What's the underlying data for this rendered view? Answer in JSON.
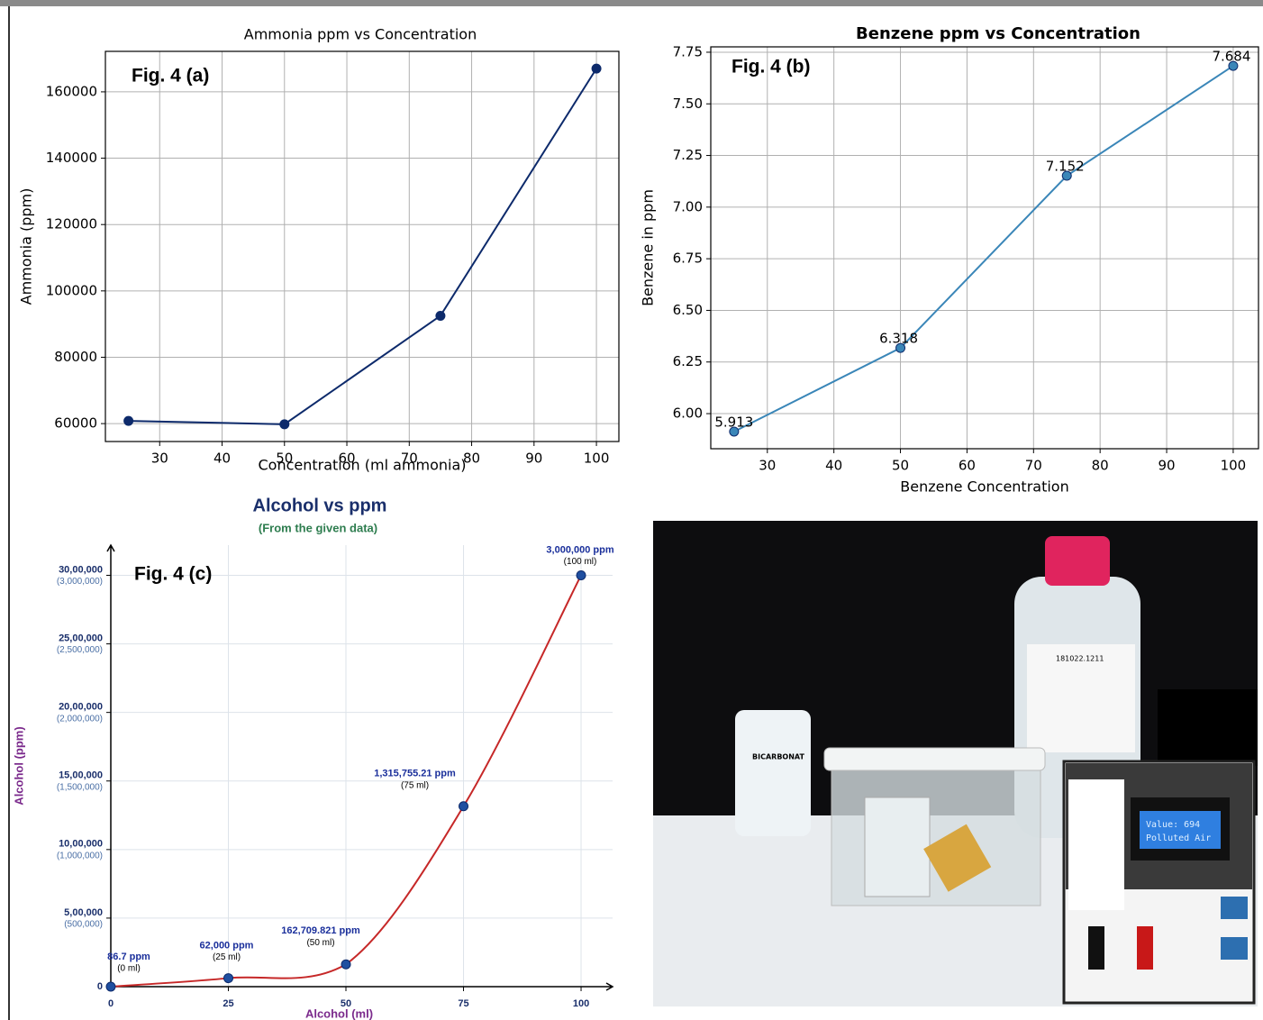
{
  "chart_data": [
    {
      "type": "line",
      "title": "Ammonia ppm vs Concentration",
      "annotation": "Fig. 4 (a)",
      "xlabel": "Concentration (ml ammonia)",
      "ylabel": "Ammonia (ppm)",
      "x": [
        25,
        50,
        75,
        100
      ],
      "values": [
        60800,
        59800,
        92500,
        167000
      ],
      "color": "#0d2a6b",
      "xlim": [
        21.3,
        103.6
      ],
      "ylim": [
        54600,
        172200
      ],
      "xticks": [
        30,
        40,
        50,
        60,
        70,
        80,
        90,
        100
      ],
      "yticks": [
        60000,
        80000,
        100000,
        120000,
        140000,
        160000
      ],
      "grid": true
    },
    {
      "type": "line",
      "title": "Benzene ppm vs Concentration",
      "annotation": "Fig. 4 (b)",
      "xlabel": "Benzene Concentration",
      "ylabel": "Benzene in ppm",
      "x": [
        25,
        50,
        75,
        100
      ],
      "values": [
        5.913,
        6.318,
        7.152,
        7.684
      ],
      "color": "#3a86b8",
      "xlim": [
        21.5,
        103.8
      ],
      "ylim": [
        5.83,
        7.776
      ],
      "xticks": [
        30,
        40,
        50,
        60,
        70,
        80,
        90,
        100
      ],
      "yticks": [
        {
          "value": 6,
          "label": "6.00"
        },
        {
          "value": 6.25,
          "label": "6.25"
        },
        {
          "value": 6.5,
          "label": "6.50"
        },
        {
          "value": 6.75,
          "label": "6.75"
        },
        {
          "value": 7,
          "label": "7.00"
        },
        {
          "value": 7.25,
          "label": "7.25"
        },
        {
          "value": 7.5,
          "label": "7.50"
        },
        {
          "value": 7.75,
          "label": "7.75"
        }
      ],
      "grid": true
    },
    {
      "type": "curve",
      "title": "Alcohol vs ppm",
      "subtitle": "(From the given data)",
      "annotation": "Fig. 4 (c)",
      "xlabel": "Alcohol (ml)",
      "ylabel": "Alcohol (ppm)",
      "x": [
        0,
        25,
        50,
        75,
        100
      ],
      "values": [
        86.7,
        62000,
        162709.821,
        1315755.21,
        3000000
      ],
      "value_labels": [
        "86.7 ppm",
        "62,000 ppm",
        "162,709.821 ppm",
        "1,315,755.21 ppm",
        "3,000,000 ppm"
      ],
      "point_notes": [
        "(0 ml)",
        "(25 ml)",
        "(50 ml)",
        "(75 ml)",
        "(100 ml)"
      ],
      "color": "#c62828",
      "xlim": [
        0,
        106.7
      ],
      "ylim": [
        0,
        3220000
      ],
      "xticks": [
        0,
        25,
        50,
        75,
        100
      ],
      "yticks": [
        {
          "value": 0,
          "label": "0"
        },
        {
          "value": 500000,
          "label": "5,00,000"
        },
        {
          "value": 1000000,
          "label": "10,00,000"
        },
        {
          "value": 1500000,
          "label": "15,00,000"
        },
        {
          "value": 2000000,
          "label": "20,00,000"
        },
        {
          "value": 2500000,
          "label": "25,00,000"
        },
        {
          "value": 3000000,
          "label": "30,00,000"
        }
      ],
      "ytick_sublabels": [
        null,
        "(500,000)",
        "(1,000,000)",
        "(1,500,000)",
        "(2,000,000)",
        "(2,500,000)",
        "(3,000,000)"
      ],
      "grid": true
    }
  ],
  "photo": {
    "labels": [
      "BICARBONAT",
      "181022.1211",
      "Value: 694",
      "Polluted Air"
    ]
  }
}
